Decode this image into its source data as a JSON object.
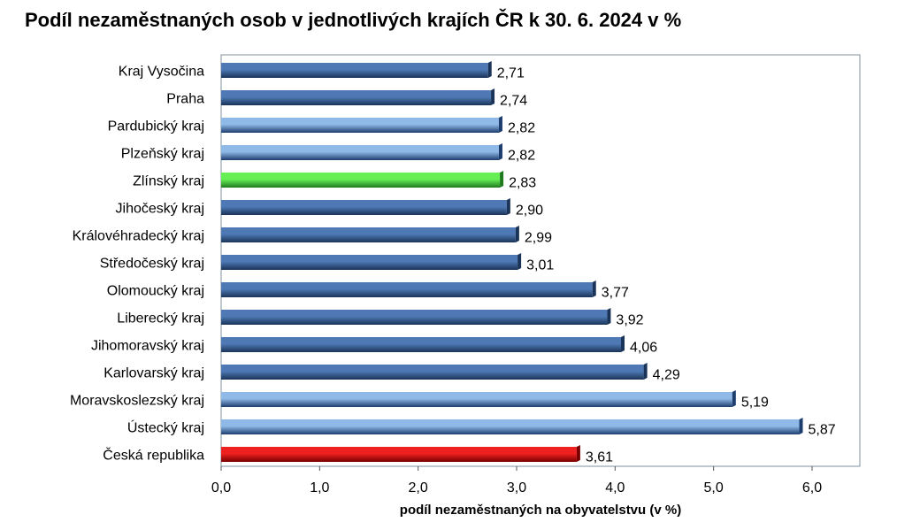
{
  "chart_data": {
    "type": "bar",
    "orientation": "horizontal",
    "title": "Podíl nezaměstnaných osob v jednotlivých krajích ČR k 30. 6. 2024 v %",
    "xlabel": "podíl nezaměstnaných na obyvatelstvu (v %)",
    "ylabel": "",
    "xlim": [
      0,
      6.5
    ],
    "x_ticks": [
      "0,0",
      "1,0",
      "2,0",
      "3,0",
      "4,0",
      "5,0",
      "6,0"
    ],
    "grid": false,
    "categories": [
      "Kraj Vysočina",
      "Praha",
      "Pardubický kraj",
      "Plzeňský kraj",
      "Zlínský kraj",
      "Jihočeský kraj",
      "Královéhradecký kraj",
      "Středočeský kraj",
      "Olomoucký kraj",
      "Liberecký kraj",
      "Jihomoravský kraj",
      "Karlovarský kraj",
      "Moravskoslezský kraj",
      "Ústecký kraj",
      "Česká republika"
    ],
    "values": [
      2.71,
      2.74,
      2.82,
      2.82,
      2.83,
      2.9,
      2.99,
      3.01,
      3.77,
      3.92,
      4.06,
      4.29,
      5.19,
      5.87,
      3.61
    ],
    "value_labels": [
      "2,71",
      "2,74",
      "2,82",
      "2,82",
      "2,83",
      "2,90",
      "2,99",
      "3,01",
      "3,77",
      "3,92",
      "4,06",
      "4,29",
      "5,19",
      "5,87",
      "3,61"
    ],
    "bar_colors": [
      "dark",
      "dark",
      "light",
      "light",
      "green",
      "dark",
      "dark",
      "dark",
      "dark",
      "dark",
      "dark",
      "dark",
      "light",
      "light",
      "red"
    ],
    "colors": {
      "dark": [
        "#1a3358",
        "#4e79b4"
      ],
      "light": [
        "#1d3d6e",
        "#8fb9e6"
      ],
      "green": [
        "#1f7a1f",
        "#66ee55"
      ],
      "red": [
        "#7a0000",
        "#ee2020"
      ]
    }
  }
}
